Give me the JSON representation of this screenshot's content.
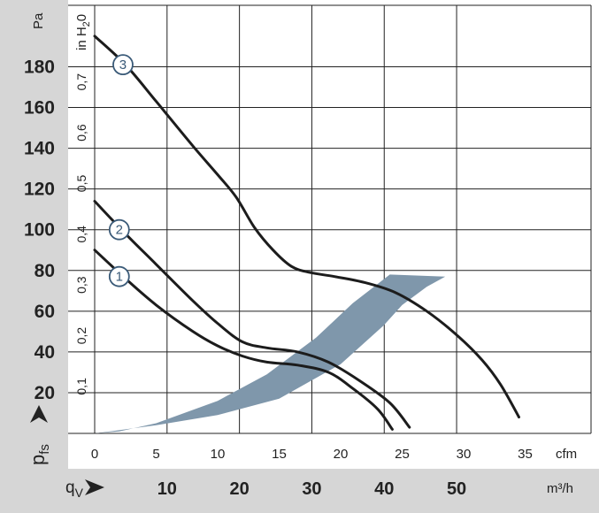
{
  "chart_data": {
    "type": "line",
    "title": "",
    "y_axis_primary": {
      "unit": "Pa",
      "label": "p",
      "label_sub": "fs",
      "range": [
        0,
        195
      ],
      "ticks": [
        20,
        40,
        60,
        80,
        100,
        120,
        140,
        160,
        180
      ]
    },
    "y_axis_secondary": {
      "unit_prefix": "in H",
      "unit_sub": "2",
      "unit_suffix": "0",
      "range": [
        0,
        0.783
      ],
      "ticks": [
        "0,1",
        "0,2",
        "0,3",
        "0,4",
        "0,5",
        "0,6",
        "0,7"
      ]
    },
    "x_axis_primary": {
      "unit": "cfm",
      "range": [
        0,
        39.4
      ],
      "ticks": [
        0,
        5,
        10,
        15,
        20,
        25,
        30,
        35
      ]
    },
    "x_axis_secondary": {
      "unit": "m³/h",
      "label": "q",
      "label_sub": "V",
      "ticks": [
        10,
        20,
        30,
        40,
        50
      ]
    },
    "grid": true,
    "series": [
      {
        "name": "1",
        "points": [
          [
            0,
            90
          ],
          [
            2.5,
            76
          ],
          [
            5,
            63
          ],
          [
            8,
            50
          ],
          [
            10,
            43
          ],
          [
            12,
            38
          ],
          [
            14,
            35
          ],
          [
            16.5,
            33.5
          ],
          [
            19,
            30
          ],
          [
            21,
            22
          ],
          [
            23,
            12
          ],
          [
            24.2,
            2
          ]
        ]
      },
      {
        "name": "2",
        "points": [
          [
            0,
            114
          ],
          [
            2.5,
            98
          ],
          [
            5,
            83
          ],
          [
            8,
            65
          ],
          [
            10,
            54
          ],
          [
            12,
            45
          ],
          [
            14,
            42
          ],
          [
            16.5,
            40
          ],
          [
            19,
            35
          ],
          [
            21.5,
            26
          ],
          [
            24,
            15
          ],
          [
            25.6,
            3
          ]
        ]
      },
      {
        "name": "3",
        "points": [
          [
            0,
            195
          ],
          [
            2.5,
            181
          ],
          [
            5,
            163
          ],
          [
            8,
            141
          ],
          [
            10,
            127
          ],
          [
            11.5,
            116
          ],
          [
            13,
            101
          ],
          [
            14.5,
            90
          ],
          [
            16,
            82
          ],
          [
            17.5,
            79
          ],
          [
            19.5,
            77
          ],
          [
            22,
            74
          ],
          [
            24.5,
            69
          ],
          [
            27,
            60
          ],
          [
            29.5,
            48
          ],
          [
            31.5,
            36
          ],
          [
            33,
            24
          ],
          [
            34.5,
            8
          ]
        ]
      }
    ],
    "working_range_polygon": [
      [
        0,
        0
      ],
      [
        5,
        4
      ],
      [
        10,
        9
      ],
      [
        15,
        17
      ],
      [
        20,
        34
      ],
      [
        23.5,
        53
      ],
      [
        25,
        63
      ],
      [
        27,
        72
      ],
      [
        28.5,
        77
      ],
      [
        24,
        78
      ],
      [
        21,
        64
      ],
      [
        18,
        47
      ],
      [
        14,
        29
      ],
      [
        10,
        16
      ],
      [
        5,
        5
      ],
      [
        2,
        1
      ]
    ],
    "working_range_color": "#7f97ab",
    "curve_color": "#1c1c1c",
    "marker_color": "#3a5a78",
    "labels_markers": [
      {
        "label": "3",
        "x": 2.3,
        "y": 181
      },
      {
        "label": "2",
        "x": 2.0,
        "y": 100
      },
      {
        "label": "1",
        "x": 2.0,
        "y": 77
      }
    ]
  }
}
